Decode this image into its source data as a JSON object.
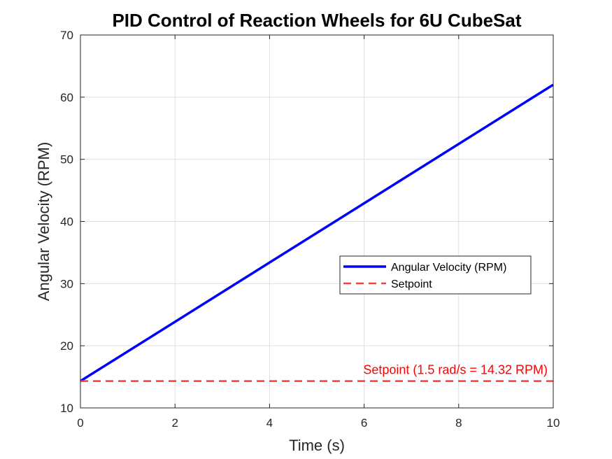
{
  "chart_data": {
    "type": "line",
    "title": "PID Control of Reaction Wheels for 6U CubeSat",
    "xlabel": "Time (s)",
    "ylabel": "Angular Velocity (RPM)",
    "xlim": [
      0,
      10
    ],
    "ylim": [
      10,
      70
    ],
    "xticks": [
      0,
      2,
      4,
      6,
      8,
      10
    ],
    "yticks": [
      10,
      20,
      30,
      40,
      50,
      60,
      70
    ],
    "grid": true,
    "legend_position": "center-right",
    "series": [
      {
        "name": "Angular Velocity (RPM)",
        "x": [
          0,
          10
        ],
        "y": [
          14.32,
          62.0
        ],
        "color": "#0000FF",
        "style": "solid"
      },
      {
        "name": "Setpoint",
        "x": [
          0,
          10
        ],
        "y": [
          14.32,
          14.32
        ],
        "color": "#FF3B3B",
        "style": "dashed"
      }
    ],
    "annotations": [
      {
        "text": "Setpoint (1.5 rad/s = 14.32 RPM)",
        "x": 10,
        "y": 14.32,
        "color": "#FF0000"
      }
    ]
  }
}
